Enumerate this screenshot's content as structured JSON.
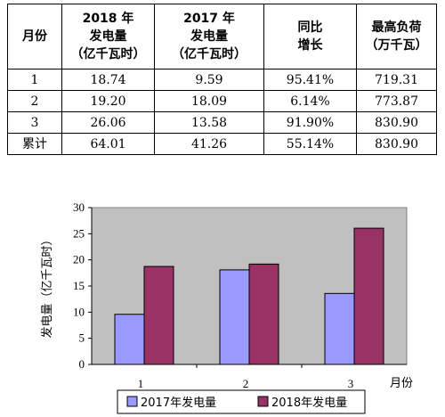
{
  "table": {
    "headers": [
      [
        "月份"
      ],
      [
        "2018 年",
        "发电量",
        "（亿千瓦时）"
      ],
      [
        "2017 年",
        "发电量",
        "（亿千瓦时）"
      ],
      [
        "同比",
        "增长"
      ],
      [
        "最高负荷",
        "（万千瓦）"
      ]
    ],
    "rows": [
      [
        "1",
        "18.74",
        "9.59",
        "95.41%",
        "719.31"
      ],
      [
        "2",
        "19.20",
        "18.09",
        "6.14%",
        "773.87"
      ],
      [
        "3",
        "26.06",
        "13.58",
        "91.90%",
        "830.90"
      ],
      [
        "累计",
        "64.01",
        "41.26",
        "55.14%",
        "830.90"
      ]
    ]
  },
  "chart_data": {
    "type": "bar",
    "categories": [
      "1",
      "2",
      "3"
    ],
    "xlabel": "月份",
    "ylabel": "发电量（亿千瓦时）",
    "ylim": [
      0,
      30
    ],
    "yticks": [
      "0",
      "5",
      "10",
      "15",
      "20",
      "25",
      "30"
    ],
    "grid": false,
    "legend": "bottom",
    "plot_background": "#c0c0c0",
    "series": [
      {
        "name": "2017年发电量",
        "color": "#9999ff",
        "values": [
          9.59,
          18.09,
          13.58
        ]
      },
      {
        "name": "2018年发电量",
        "color": "#993366",
        "values": [
          18.74,
          19.2,
          26.06
        ]
      }
    ]
  }
}
